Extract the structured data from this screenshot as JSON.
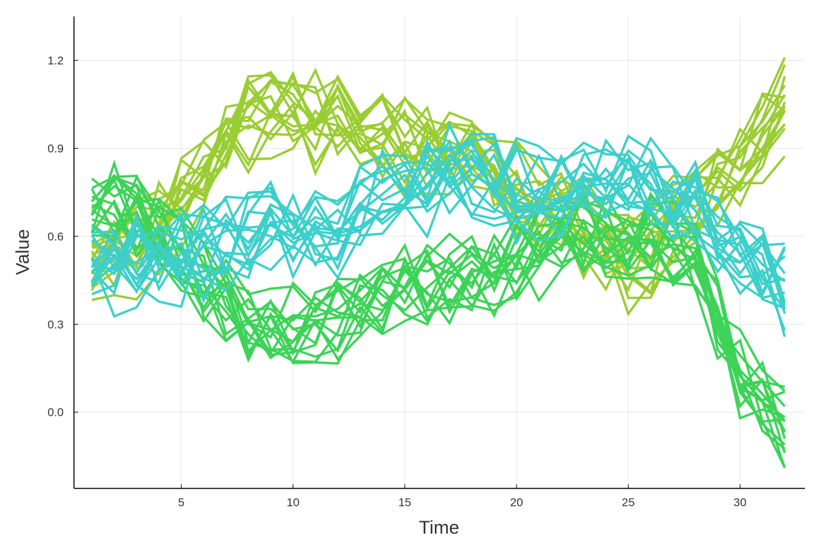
{
  "chart_data": {
    "type": "line",
    "title": "",
    "xlabel": "Time",
    "ylabel": "Value",
    "xlim": [
      0.2,
      32.9
    ],
    "ylim": [
      -0.26,
      1.35
    ],
    "xticks": [
      5,
      10,
      15,
      20,
      25,
      30
    ],
    "xtick_labels": [
      "5",
      "10",
      "15",
      "20",
      "25",
      "30"
    ],
    "yticks": [
      0.0,
      0.3,
      0.6,
      0.9,
      1.2
    ],
    "ytick_labels": [
      "0.0",
      "0.3",
      "0.6",
      "0.9",
      "1.2"
    ],
    "grid": true,
    "legend": "none",
    "x": [
      1,
      2,
      3,
      4,
      5,
      6,
      7,
      8,
      9,
      10,
      11,
      12,
      13,
      14,
      15,
      16,
      17,
      18,
      19,
      20,
      21,
      22,
      23,
      24,
      25,
      26,
      27,
      28,
      29,
      30,
      31,
      32
    ],
    "groups": [
      {
        "color": "#9acd32",
        "series_count": 16,
        "mean": [
          0.5,
          0.52,
          0.55,
          0.62,
          0.72,
          0.82,
          0.92,
          0.98,
          1.02,
          1.0,
          0.99,
          0.98,
          0.95,
          0.93,
          0.92,
          0.9,
          0.88,
          0.84,
          0.8,
          0.74,
          0.7,
          0.67,
          0.62,
          0.55,
          0.52,
          0.56,
          0.62,
          0.7,
          0.78,
          0.86,
          0.95,
          1.05
        ]
      },
      {
        "color": "#3dd358",
        "series_count": 16,
        "mean": [
          0.68,
          0.67,
          0.65,
          0.6,
          0.52,
          0.42,
          0.34,
          0.28,
          0.25,
          0.26,
          0.27,
          0.3,
          0.34,
          0.38,
          0.4,
          0.42,
          0.43,
          0.45,
          0.46,
          0.5,
          0.53,
          0.56,
          0.58,
          0.58,
          0.57,
          0.56,
          0.54,
          0.48,
          0.3,
          0.12,
          0.0,
          -0.08
        ]
      },
      {
        "color": "#3ccfcc",
        "series_count": 16,
        "mean": [
          0.5,
          0.5,
          0.52,
          0.52,
          0.53,
          0.55,
          0.57,
          0.6,
          0.62,
          0.61,
          0.6,
          0.62,
          0.68,
          0.74,
          0.77,
          0.79,
          0.81,
          0.8,
          0.78,
          0.76,
          0.74,
          0.74,
          0.75,
          0.77,
          0.78,
          0.76,
          0.73,
          0.69,
          0.62,
          0.54,
          0.48,
          0.42
        ]
      }
    ]
  }
}
